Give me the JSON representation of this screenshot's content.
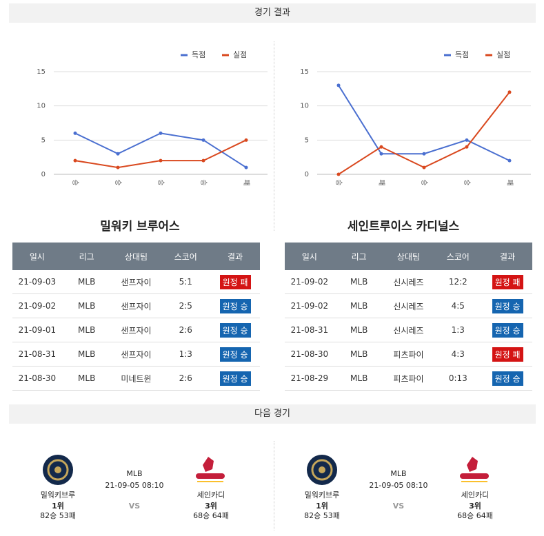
{
  "header": {
    "results_title": "경기 결과",
    "next_title": "다음 경기"
  },
  "teams": [
    {
      "name": "밀워키 브루어스",
      "chart": {
        "type": "line",
        "categories": [
          "승",
          "승",
          "승",
          "승",
          "패"
        ],
        "series": [
          {
            "name": "득점",
            "color": "#4a6fd0",
            "values": [
              6,
              3,
              6,
              5,
              1
            ]
          },
          {
            "name": "실점",
            "color": "#d9481e",
            "values": [
              2,
              1,
              2,
              2,
              5
            ]
          }
        ],
        "ylim": [
          0,
          15
        ],
        "yticks": [
          0,
          5,
          10,
          15
        ],
        "grid": true,
        "legend": "top-right"
      },
      "table": {
        "columns": [
          "일시",
          "리그",
          "상대팀",
          "스코어",
          "결과"
        ],
        "rows": [
          [
            "21-09-03",
            "MLB",
            "샌프자이",
            "5:1",
            "원정 패"
          ],
          [
            "21-09-02",
            "MLB",
            "샌프자이",
            "2:5",
            "원정 승"
          ],
          [
            "21-09-01",
            "MLB",
            "샌프자이",
            "2:6",
            "원정 승"
          ],
          [
            "21-08-31",
            "MLB",
            "샌프자이",
            "1:3",
            "원정 승"
          ],
          [
            "21-08-30",
            "MLB",
            "미네트윈",
            "2:6",
            "원정 승"
          ]
        ],
        "result_colors": [
          "#d41414",
          "#1565b0",
          "#1565b0",
          "#1565b0",
          "#1565b0"
        ]
      }
    },
    {
      "name": "세인트루이스 카디널스",
      "chart": {
        "type": "line",
        "categories": [
          "승",
          "패",
          "승",
          "승",
          "패"
        ],
        "series": [
          {
            "name": "득점",
            "color": "#4a6fd0",
            "values": [
              13,
              3,
              3,
              5,
              2
            ]
          },
          {
            "name": "실점",
            "color": "#d9481e",
            "values": [
              0,
              4,
              1,
              4,
              12
            ]
          }
        ],
        "ylim": [
          0,
          15
        ],
        "yticks": [
          0,
          5,
          10,
          15
        ],
        "grid": true,
        "legend": "top-right"
      },
      "table": {
        "columns": [
          "일시",
          "리그",
          "상대팀",
          "스코어",
          "결과"
        ],
        "rows": [
          [
            "21-09-02",
            "MLB",
            "신시레즈",
            "12:2",
            "원정 패"
          ],
          [
            "21-09-02",
            "MLB",
            "신시레즈",
            "4:5",
            "원정 승"
          ],
          [
            "21-08-31",
            "MLB",
            "신시레즈",
            "1:3",
            "원정 승"
          ],
          [
            "21-08-30",
            "MLB",
            "피츠파이",
            "4:3",
            "원정 패"
          ],
          [
            "21-08-29",
            "MLB",
            "피츠파이",
            "0:13",
            "원정 승"
          ]
        ],
        "result_colors": [
          "#d41414",
          "#1565b0",
          "#1565b0",
          "#d41414",
          "#1565b0"
        ]
      }
    }
  ],
  "next_games": [
    {
      "home": {
        "name": "밀워키브루",
        "rank": "1위",
        "record": "82승 53패"
      },
      "league": "MLB",
      "datetime": "21-09-05 08:10",
      "vs": "VS",
      "away": {
        "name": "세인카디",
        "rank": "3위",
        "record": "68승 64패"
      }
    },
    {
      "home": {
        "name": "밀워키브루",
        "rank": "1위",
        "record": "82승 53패"
      },
      "league": "MLB",
      "datetime": "21-09-05 08:10",
      "vs": "VS",
      "away": {
        "name": "세인카디",
        "rank": "3위",
        "record": "68승 64패"
      }
    }
  ]
}
